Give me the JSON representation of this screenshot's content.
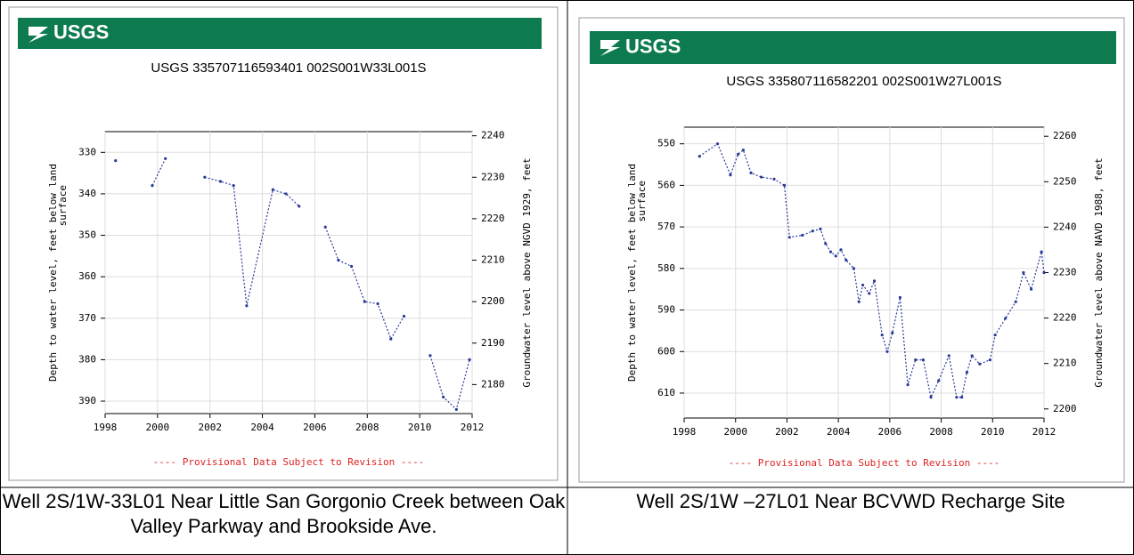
{
  "chart_data": [
    {
      "type": "line",
      "logo": "USGS",
      "title": "USGS 335707116593401 002S001W33L001S",
      "ylabel": [
        "Depth to water level, feet below land",
        "surface"
      ],
      "y2label": "Groundwater level above NGVD 1929, feet",
      "footer": "---- Provisional Data Subject to Revision ----",
      "caption": "Well 2S/1W-33L01 Near Little San Gorgonio Creek between Oak Valley Parkway and Brookside Ave.",
      "x": [
        1998.4,
        null,
        1999.8,
        2000.3,
        null,
        2001.8,
        2002.4,
        2002.9,
        2003.4,
        2004.4,
        2004.9,
        2005.4,
        null,
        2006.4,
        2006.9,
        2007.4,
        2007.9,
        2008.4,
        2008.9,
        2009.4,
        null,
        2010.4,
        2010.9,
        2011.4,
        2011.9
      ],
      "values": [
        332,
        null,
        338,
        331.5,
        null,
        336,
        337,
        338,
        367,
        339,
        340,
        343,
        null,
        348,
        356,
        357.5,
        366,
        366.5,
        375,
        369.5,
        null,
        379,
        389,
        392,
        380
      ],
      "color": "#2b3a9a",
      "y_inverted": true,
      "xlim": [
        1998,
        2012
      ],
      "xticks": [
        1998,
        2000,
        2002,
        2004,
        2006,
        2008,
        2010,
        2012
      ],
      "ylim": [
        325,
        393
      ],
      "yticks": [
        330,
        340,
        350,
        360,
        370,
        380,
        390
      ],
      "y2lim": [
        2173,
        2241
      ],
      "y2ticks": [
        2180,
        2190,
        2200,
        2210,
        2220,
        2230,
        2240
      ],
      "grid": true
    },
    {
      "type": "line",
      "logo": "USGS",
      "title": "USGS 335807116582201 002S001W27L001S",
      "ylabel": [
        "Depth to water level, feet below land",
        "surface"
      ],
      "y2label": "Groundwater level above NAVD 1988, feet",
      "footer": "---- Provisional Data Subject to Revision ----",
      "caption": "Well 2S/1W –27L01 Near BCVWD Recharge Site",
      "x": [
        1998.6,
        1999.3,
        1999.8,
        2000.1,
        2000.3,
        2000.6,
        2001.0,
        2001.5,
        2001.9,
        2002.1,
        2002.6,
        2003.0,
        2003.3,
        2003.5,
        2003.7,
        2003.9,
        2004.1,
        2004.3,
        2004.6,
        2004.8,
        2004.95,
        2005.2,
        2005.4,
        2005.7,
        2005.9,
        2006.1,
        2006.4,
        2006.7,
        2007.0,
        2007.3,
        2007.6,
        2007.9,
        2008.3,
        2008.6,
        2008.8,
        2009.0,
        2009.2,
        2009.5,
        2009.9,
        2010.1,
        2010.5,
        2010.9,
        2011.2,
        2011.5,
        2011.9,
        2012.0
      ],
      "values": [
        553,
        550,
        557.5,
        552.5,
        551.5,
        557,
        558,
        558.5,
        560,
        572.5,
        572,
        571,
        570.5,
        574,
        576,
        577,
        575.5,
        578,
        580,
        588,
        584,
        586,
        583,
        596,
        600,
        595.5,
        587,
        608,
        602,
        602,
        611,
        607,
        601,
        611,
        611,
        605,
        601,
        603,
        602,
        596,
        592,
        588,
        581,
        585,
        576,
        581
      ],
      "color": "#2b3a9a",
      "y_inverted": true,
      "xlim": [
        1998,
        2012
      ],
      "xticks": [
        1998,
        2000,
        2002,
        2004,
        2006,
        2008,
        2010,
        2012
      ],
      "ylim": [
        546,
        616
      ],
      "yticks": [
        550,
        560,
        570,
        580,
        590,
        600,
        610
      ],
      "y2lim": [
        2198,
        2262
      ],
      "y2ticks": [
        2200,
        2210,
        2220,
        2230,
        2240,
        2250,
        2260
      ],
      "grid": true
    }
  ]
}
